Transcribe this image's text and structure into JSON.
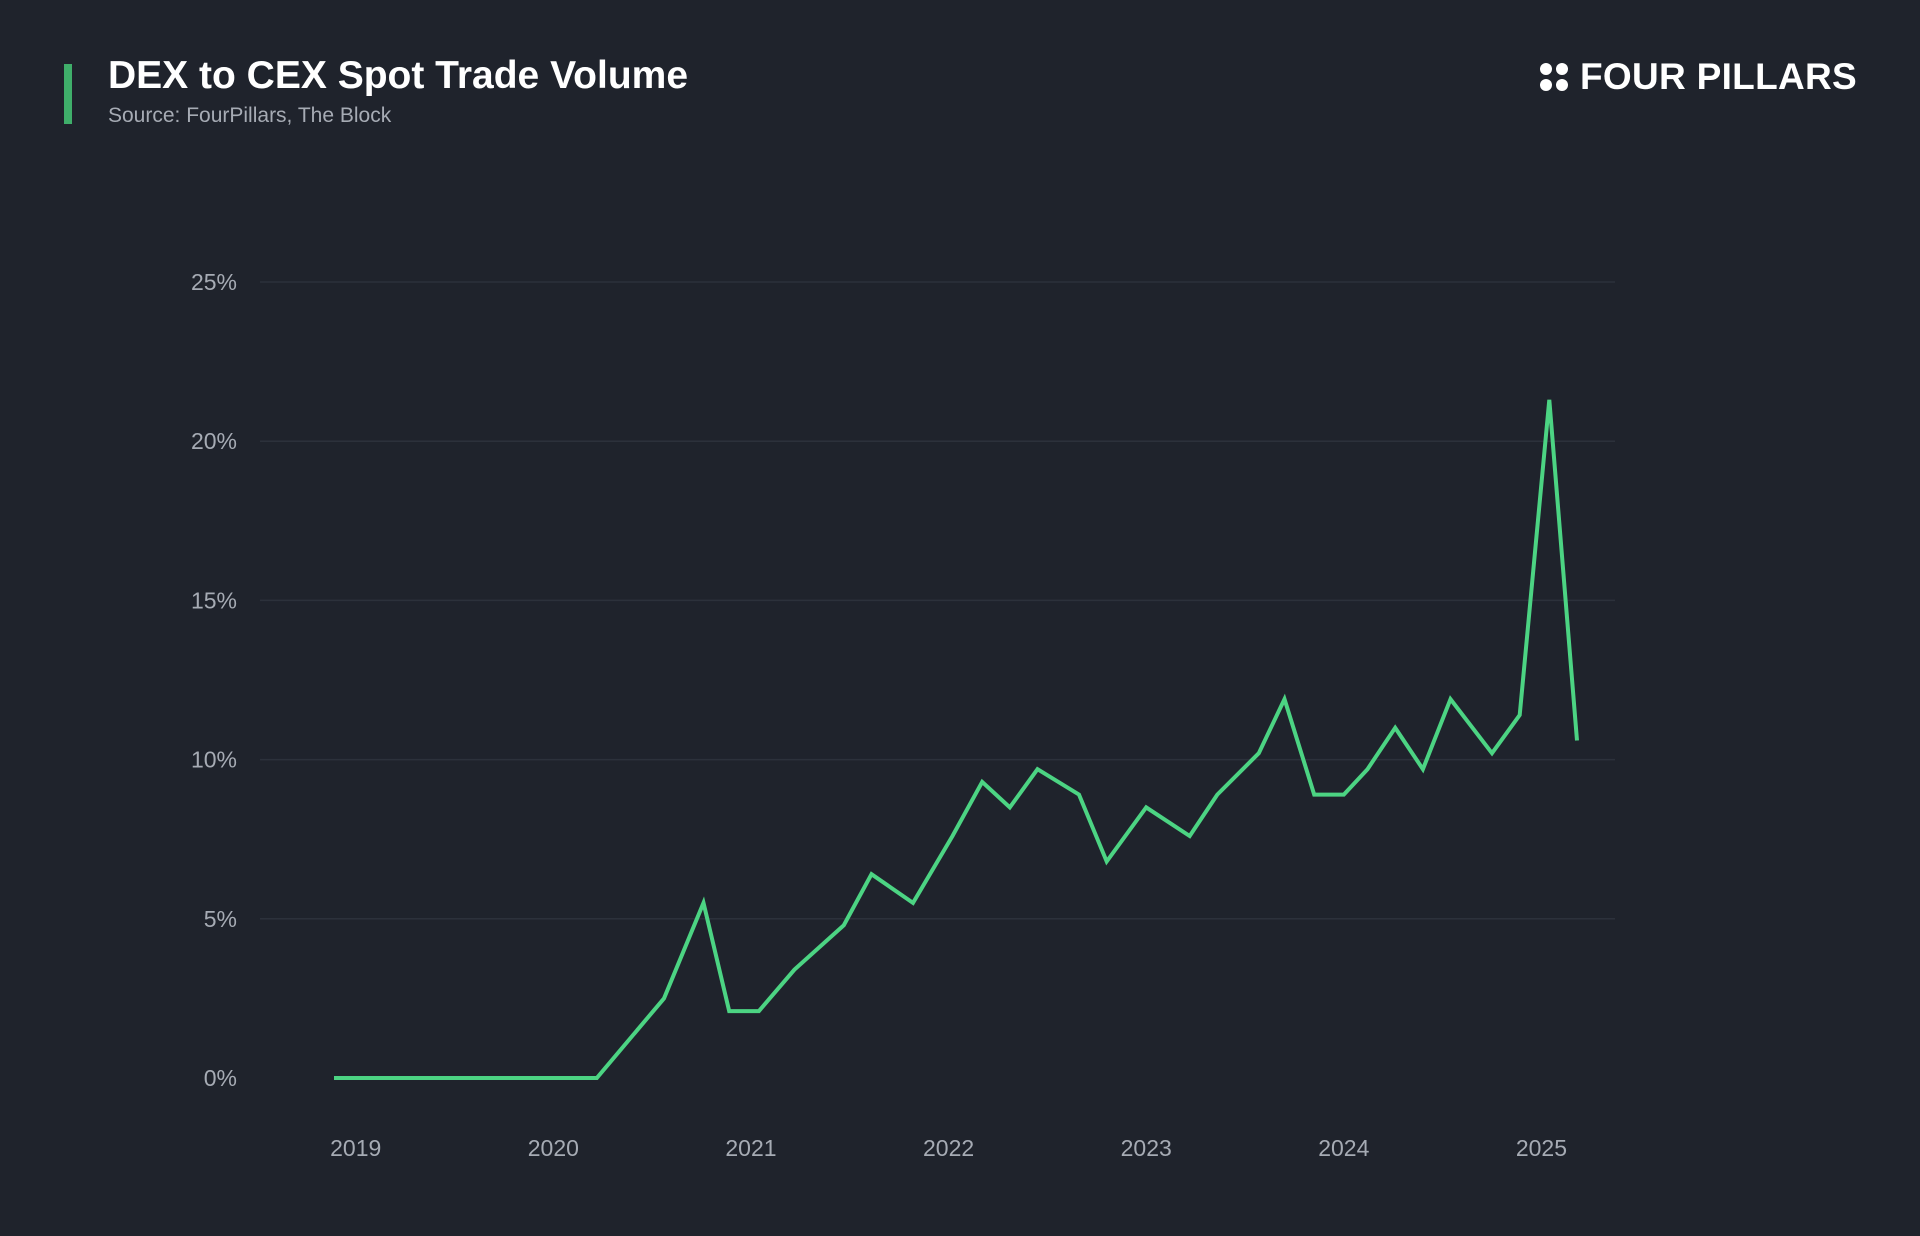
{
  "header": {
    "title": "DEX to CEX Spot Trade Volume",
    "subtitle": "Source: FourPillars, The Block",
    "brand_name": "FOUR PILLARS",
    "brand_icon": "four-dots-logo-icon"
  },
  "colors": {
    "background": "#1f232c",
    "accent": "#3fae6a",
    "line": "#4cd483",
    "grid": "#2c313b",
    "tick_text": "#a6abb4"
  },
  "chart_data": {
    "type": "line",
    "title": "DEX to CEX Spot Trade Volume",
    "xlabel": "",
    "ylabel": "",
    "ylim": [
      0,
      25
    ],
    "y_ticks": [
      0,
      5,
      10,
      15,
      20,
      25
    ],
    "y_tick_labels": [
      "0%",
      "5%",
      "10%",
      "15%",
      "20%",
      "25%"
    ],
    "x_ticks": [
      2019,
      2020,
      2021,
      2022,
      2023,
      2024,
      2025
    ],
    "x_tick_labels": [
      "2019",
      "2020",
      "2021",
      "2022",
      "2023",
      "2024",
      "2025"
    ],
    "xlim": [
      2018.89,
      2025.18
    ],
    "grid": true,
    "legend": "none",
    "series": [
      {
        "x": [
          2018.89,
          2019.22,
          2019.56,
          2019.89,
          2020.22,
          2020.56,
          2020.76,
          2020.89,
          2021.04,
          2021.22,
          2021.47,
          2021.61,
          2021.82,
          2022.02,
          2022.17,
          2022.31,
          2022.45,
          2022.66,
          2022.8,
          2023.0,
          2023.22,
          2023.36,
          2023.57,
          2023.7,
          2023.85,
          2024.0,
          2024.12,
          2024.26,
          2024.4,
          2024.54,
          2024.75,
          2024.89,
          2025.04,
          2025.18
        ],
        "values": [
          0,
          0,
          0,
          0,
          0,
          2.5,
          5.5,
          2.1,
          2.1,
          3.4,
          4.8,
          6.4,
          5.5,
          7.6,
          9.3,
          8.5,
          9.7,
          8.9,
          6.8,
          8.5,
          7.6,
          8.9,
          10.2,
          11.9,
          8.9,
          8.9,
          9.7,
          11.0,
          9.7,
          11.9,
          10.2,
          11.4,
          21.3,
          10.6
        ]
      }
    ]
  }
}
